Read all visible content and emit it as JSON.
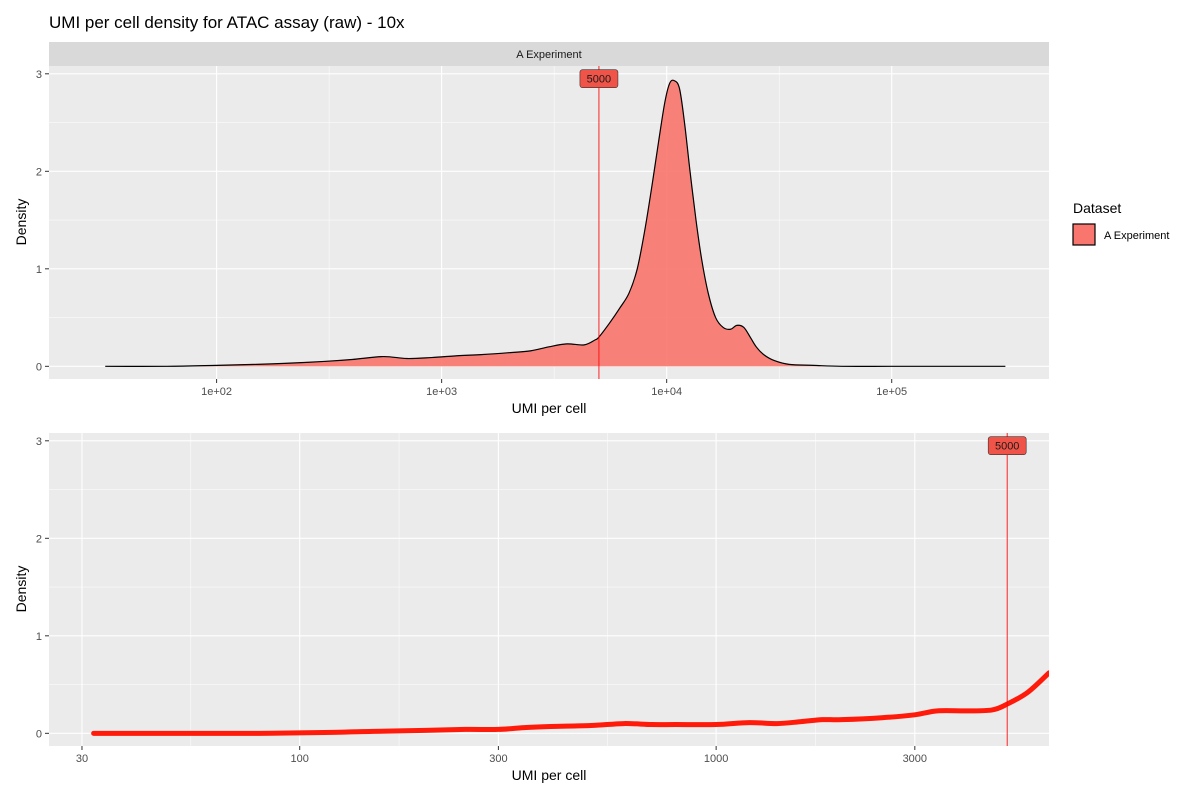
{
  "title": "UMI per cell density for ATAC assay (raw) - 10x",
  "colors": {
    "fill": "#f8766d",
    "fill_alpha": 0.9,
    "outline": "#000000",
    "cutoff_line": "#ff0000",
    "zoom_line": "#ff1a0a",
    "panel_bg": "#ebebeb",
    "grid_major": "#ffffff",
    "strip_bg": "#d9d9d9",
    "annotation_fill": "#f05448"
  },
  "legend": {
    "title": "Dataset",
    "items": [
      {
        "label": "A Experiment",
        "color": "#f8766d"
      }
    ]
  },
  "chart_data": [
    {
      "type": "area",
      "facet": "A Experiment",
      "xlabel": "UMI per cell",
      "ylabel": "Density",
      "x_scale": "log10",
      "xlim": [
        18,
        500000
      ],
      "ylim": [
        -0.13,
        3.08
      ],
      "x_ticks": [
        {
          "value": 100,
          "label": "1e+02"
        },
        {
          "value": 1000,
          "label": "1e+03"
        },
        {
          "value": 10000,
          "label": "1e+04"
        },
        {
          "value": 100000,
          "label": "1e+05"
        }
      ],
      "y_ticks": [
        {
          "value": 0,
          "label": "0"
        },
        {
          "value": 1,
          "label": "1"
        },
        {
          "value": 2,
          "label": "2"
        },
        {
          "value": 3,
          "label": "3"
        }
      ],
      "grid": true,
      "cutoff": {
        "value": 5000,
        "label": "5000",
        "label_y": 2.95
      },
      "series": [
        {
          "name": "A Experiment",
          "x": [
            32,
            60,
            100,
            150,
            200,
            300,
            400,
            550,
            700,
            900,
            1200,
            1500,
            2000,
            2500,
            3000,
            3600,
            4300,
            4800,
            5000,
            5600,
            6200,
            6800,
            7400,
            8000,
            8600,
            9200,
            9800,
            10300,
            10800,
            11400,
            12000,
            12700,
            13500,
            14300,
            15300,
            16500,
            17800,
            19200,
            20500,
            22000,
            23500,
            25000,
            27000,
            30000,
            35000,
            45000,
            60000,
            100000,
            180000,
            320000
          ],
          "y": [
            0.0,
            0.0,
            0.01,
            0.02,
            0.03,
            0.05,
            0.07,
            0.1,
            0.08,
            0.09,
            0.11,
            0.12,
            0.14,
            0.16,
            0.2,
            0.23,
            0.22,
            0.27,
            0.3,
            0.45,
            0.6,
            0.75,
            1.0,
            1.4,
            1.85,
            2.3,
            2.7,
            2.9,
            2.93,
            2.85,
            2.5,
            2.0,
            1.5,
            1.1,
            0.75,
            0.5,
            0.4,
            0.38,
            0.42,
            0.4,
            0.3,
            0.2,
            0.12,
            0.06,
            0.02,
            0.01,
            0.0,
            0.0,
            0.0,
            0.0
          ]
        }
      ]
    },
    {
      "type": "line",
      "xlabel": "UMI per cell",
      "ylabel": "Density",
      "x_scale": "log10",
      "xlim": [
        25,
        6300
      ],
      "ylim": [
        -0.13,
        3.08
      ],
      "x_ticks": [
        {
          "value": 30,
          "label": "30"
        },
        {
          "value": 100,
          "label": "100"
        },
        {
          "value": 300,
          "label": "300"
        },
        {
          "value": 1000,
          "label": "1000"
        },
        {
          "value": 3000,
          "label": "3000"
        }
      ],
      "y_ticks": [
        {
          "value": 0,
          "label": "0"
        },
        {
          "value": 1,
          "label": "1"
        },
        {
          "value": 2,
          "label": "2"
        },
        {
          "value": 3,
          "label": "3"
        }
      ],
      "grid": true,
      "cutoff": {
        "value": 5000,
        "label": "5000",
        "label_y": 2.95
      },
      "series": [
        {
          "name": "A Experiment",
          "x": [
            32,
            50,
            80,
            120,
            150,
            200,
            250,
            300,
            350,
            400,
            500,
            600,
            700,
            800,
            1000,
            1200,
            1400,
            1600,
            1800,
            2000,
            2500,
            3000,
            3400,
            4000,
            4600,
            5000,
            5600,
            6300
          ],
          "y": [
            0.0,
            0.0,
            0.0,
            0.01,
            0.02,
            0.03,
            0.04,
            0.04,
            0.06,
            0.07,
            0.08,
            0.1,
            0.09,
            0.09,
            0.09,
            0.11,
            0.1,
            0.12,
            0.14,
            0.14,
            0.16,
            0.19,
            0.23,
            0.23,
            0.24,
            0.3,
            0.42,
            0.62
          ]
        }
      ]
    }
  ]
}
